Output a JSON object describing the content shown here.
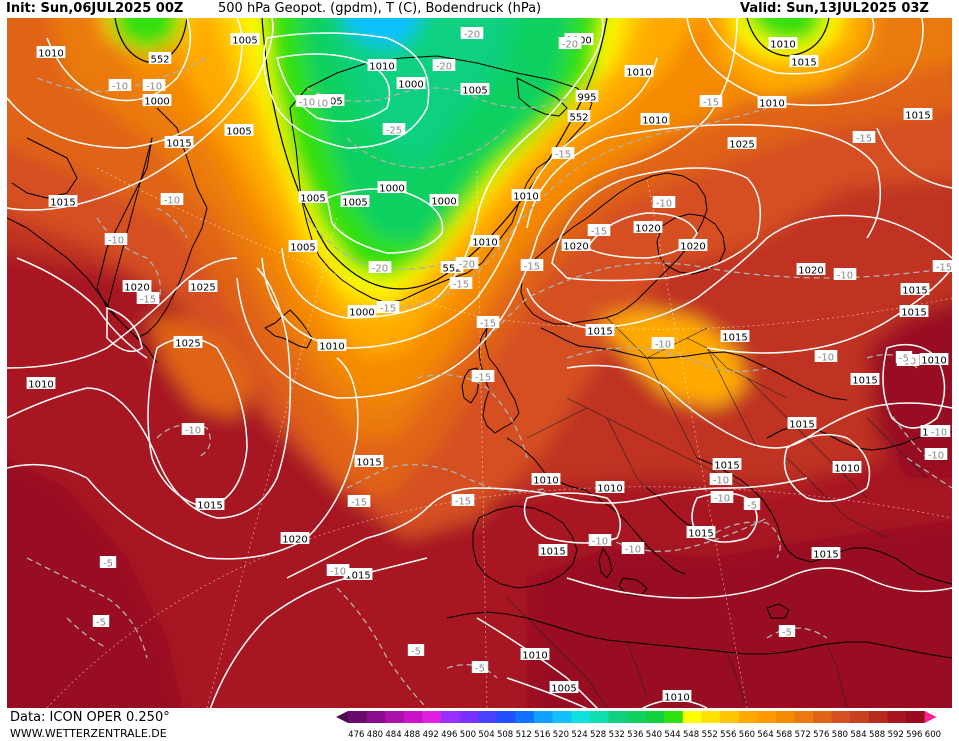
{
  "header": {
    "init": "Init: Sun,06JUL2025 00Z",
    "title": "500 hPa Geopot. (gpdm), T (C), Bodendruck (hPa)",
    "valid": "Valid: Sun,13JUL2025 03Z"
  },
  "footer": {
    "data_source": "Data: ICON OPER 0.250°",
    "website": "WWW.WETTERZENTRALE.DE"
  },
  "colorbar": {
    "ticks": [
      "476",
      "480",
      "484",
      "488",
      "492",
      "496",
      "500",
      "504",
      "508",
      "512",
      "516",
      "520",
      "524",
      "528",
      "532",
      "536",
      "540",
      "544",
      "548",
      "552",
      "556",
      "560",
      "564",
      "568",
      "572",
      "576",
      "580",
      "584",
      "588",
      "592",
      "596",
      "600"
    ],
    "colors": [
      "#4b0a4b",
      "#6a0a6a",
      "#8b0d8b",
      "#aa10aa",
      "#c813c8",
      "#e020e0",
      "#9a30ff",
      "#7a30ff",
      "#4a40ff",
      "#2050ff",
      "#1070ff",
      "#10a0ff",
      "#10c0ff",
      "#10e0e0",
      "#10e0b0",
      "#10d080",
      "#10d060",
      "#10d040",
      "#30e010",
      "#ffff00",
      "#ffe000",
      "#ffc800",
      "#ffaa00",
      "#ff9a00",
      "#f58a00",
      "#ea7a10",
      "#e06418",
      "#d55020",
      "#c84020",
      "#b82a20",
      "#a81420",
      "#980a20",
      "#ff2090"
    ]
  },
  "map_labels": {
    "pressure": [
      {
        "id": "p1",
        "text": "1005"
      },
      {
        "id": "p2",
        "text": "1000"
      },
      {
        "id": "p3",
        "text": "1010"
      },
      {
        "id": "p4",
        "text": "1010"
      },
      {
        "id": "p5",
        "text": "1015"
      },
      {
        "id": "p6",
        "text": "1010"
      },
      {
        "id": "p7",
        "text": "1000"
      },
      {
        "id": "p8",
        "text": "1000"
      },
      {
        "id": "p9",
        "text": "1005"
      },
      {
        "id": "p10",
        "text": "995"
      },
      {
        "id": "p11",
        "text": "1005"
      },
      {
        "id": "p12",
        "text": "1010"
      },
      {
        "id": "p13",
        "text": "1005"
      },
      {
        "id": "p14",
        "text": "1010"
      },
      {
        "id": "p15",
        "text": "1015"
      },
      {
        "id": "p16",
        "text": "1015"
      },
      {
        "id": "p17",
        "text": "1010"
      },
      {
        "id": "p18",
        "text": "1000"
      },
      {
        "id": "p19",
        "text": "1000"
      },
      {
        "id": "p20",
        "text": "1005"
      },
      {
        "id": "p21",
        "text": "1005"
      },
      {
        "id": "p22",
        "text": "1010"
      },
      {
        "id": "p23",
        "text": "1015"
      },
      {
        "id": "p24",
        "text": "1020"
      },
      {
        "id": "p25",
        "text": "1020"
      },
      {
        "id": "p26",
        "text": "1020"
      },
      {
        "id": "p27",
        "text": "1025"
      },
      {
        "id": "p28",
        "text": "1020"
      },
      {
        "id": "p29",
        "text": "1025"
      },
      {
        "id": "p30",
        "text": "1020"
      },
      {
        "id": "p31",
        "text": "1025"
      },
      {
        "id": "p32",
        "text": "1000"
      },
      {
        "id": "p33",
        "text": "1010"
      },
      {
        "id": "p34",
        "text": "1015"
      },
      {
        "id": "p35",
        "text": "1015"
      },
      {
        "id": "p36",
        "text": "1010"
      },
      {
        "id": "p37",
        "text": "1015"
      },
      {
        "id": "p38",
        "text": "1010"
      },
      {
        "id": "p39",
        "text": "1015"
      },
      {
        "id": "p40",
        "text": "1015"
      },
      {
        "id": "p41",
        "text": "1015"
      },
      {
        "id": "p42",
        "text": "1015"
      },
      {
        "id": "p43",
        "text": "1010"
      },
      {
        "id": "p44",
        "text": "1010"
      },
      {
        "id": "p45",
        "text": "1015"
      },
      {
        "id": "p46",
        "text": "1010"
      },
      {
        "id": "p47",
        "text": "1005"
      },
      {
        "id": "p48",
        "text": "1010"
      },
      {
        "id": "p49",
        "text": "1010"
      },
      {
        "id": "p50",
        "text": "1020"
      },
      {
        "id": "p51",
        "text": "1015"
      },
      {
        "id": "p52",
        "text": "1015"
      },
      {
        "id": "p53",
        "text": "1015"
      },
      {
        "id": "p54",
        "text": "1010"
      },
      {
        "id": "p55",
        "text": "1015"
      },
      {
        "id": "p56",
        "text": "1010"
      },
      {
        "id": "p57",
        "text": "1005"
      },
      {
        "id": "p58",
        "text": "1015"
      },
      {
        "id": "p59",
        "text": "1015"
      },
      {
        "id": "p60",
        "text": "1010"
      },
      {
        "id": "p61",
        "text": "1015"
      }
    ],
    "geopotential": [
      {
        "id": "g1",
        "text": "552"
      },
      {
        "id": "g2",
        "text": "552"
      },
      {
        "id": "g3",
        "text": "552"
      }
    ],
    "temperature": [
      {
        "id": "t1",
        "text": "-10"
      },
      {
        "id": "t2",
        "text": "-10"
      },
      {
        "id": "t3",
        "text": "-20"
      },
      {
        "id": "t4",
        "text": "-20"
      },
      {
        "id": "t5",
        "text": "-20"
      },
      {
        "id": "t6",
        "text": "-25"
      },
      {
        "id": "t7",
        "text": "-15"
      },
      {
        "id": "t8",
        "text": "-10"
      },
      {
        "id": "t9",
        "text": "-10"
      },
      {
        "id": "t10",
        "text": "-15"
      },
      {
        "id": "t11",
        "text": "-20"
      },
      {
        "id": "t12",
        "text": "-20"
      },
      {
        "id": "t13",
        "text": "-15"
      },
      {
        "id": "t14",
        "text": "-15"
      },
      {
        "id": "t15",
        "text": "-15"
      },
      {
        "id": "t16",
        "text": "-10"
      },
      {
        "id": "t17",
        "text": "-15"
      },
      {
        "id": "t18",
        "text": "-15"
      },
      {
        "id": "t19",
        "text": "-15"
      },
      {
        "id": "t20",
        "text": "-15"
      },
      {
        "id": "t21",
        "text": "-10"
      },
      {
        "id": "t22",
        "text": "-15"
      },
      {
        "id": "t23",
        "text": "-10"
      },
      {
        "id": "t24",
        "text": "-10"
      },
      {
        "id": "t25",
        "text": "-10"
      },
      {
        "id": "t26",
        "text": "-15"
      },
      {
        "id": "t27",
        "text": "-15"
      },
      {
        "id": "t28",
        "text": "-10"
      },
      {
        "id": "t29",
        "text": "-10"
      },
      {
        "id": "t30",
        "text": "-10"
      },
      {
        "id": "t31",
        "text": "-10"
      },
      {
        "id": "t32",
        "text": "-15"
      },
      {
        "id": "t33",
        "text": "-10"
      },
      {
        "id": "t34",
        "text": "-10"
      },
      {
        "id": "t35",
        "text": "-10"
      },
      {
        "id": "t36",
        "text": "-5"
      },
      {
        "id": "t37",
        "text": "-5"
      },
      {
        "id": "t38",
        "text": "-5"
      },
      {
        "id": "t39",
        "text": "-5"
      },
      {
        "id": "t40",
        "text": "-5"
      },
      {
        "id": "t41",
        "text": "-5"
      },
      {
        "id": "t42",
        "text": "-10"
      },
      {
        "id": "t43",
        "text": "-10"
      },
      {
        "id": "t44",
        "text": "-10"
      },
      {
        "id": "t45",
        "text": "-5"
      }
    ]
  }
}
